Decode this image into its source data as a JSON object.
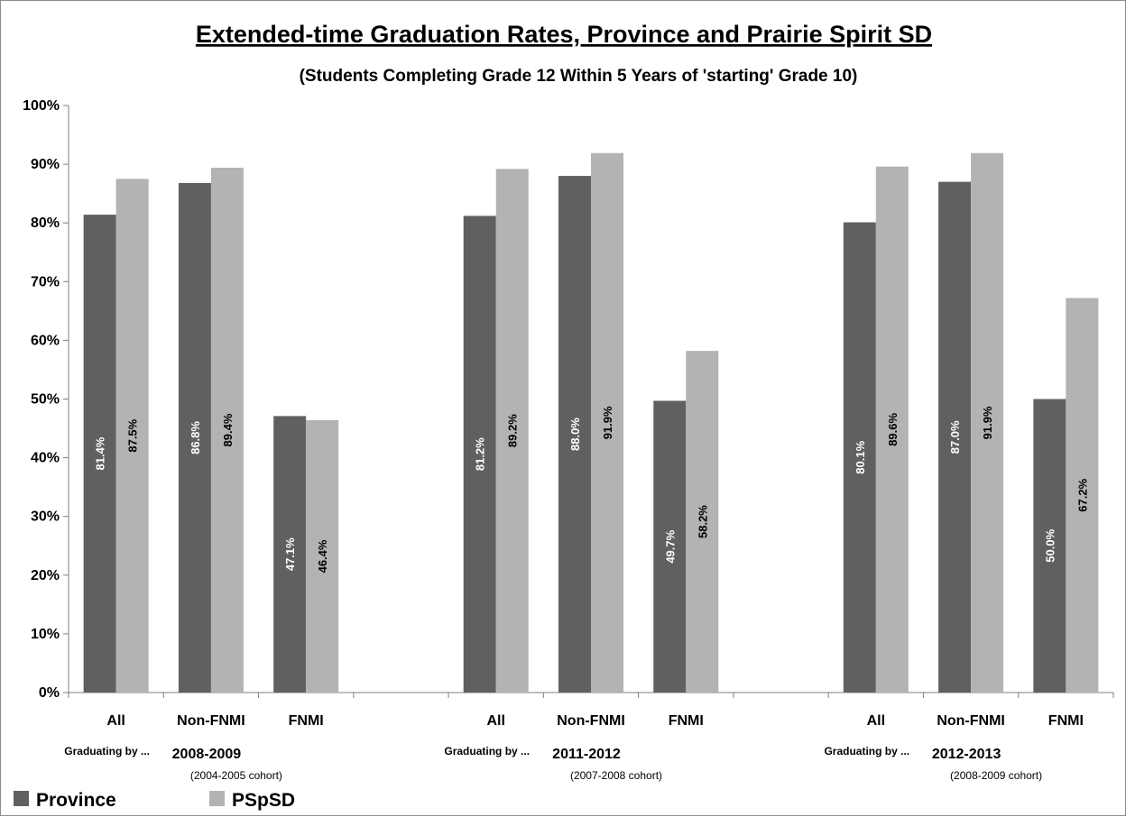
{
  "chart_data": {
    "type": "bar",
    "title": "Extended-time Graduation Rates, Province and Prairie Spirit SD",
    "subtitle": "(Students Completing Grade 12 Within 5 Years of 'starting' Grade 10)",
    "ylim": [
      0,
      100
    ],
    "y_ticks": [
      "0%",
      "10%",
      "20%",
      "30%",
      "40%",
      "50%",
      "60%",
      "70%",
      "80%",
      "90%",
      "100%"
    ],
    "grid": false,
    "legend_position": "bottom-left",
    "categories": [
      "All",
      "Non-FNMI",
      "FNMI",
      "",
      "All",
      "Non-FNMI",
      "FNMI",
      "",
      "All",
      "Non-FNMI",
      "FNMI"
    ],
    "groups": [
      {
        "graduating_label": "Graduating by ...",
        "year": "2008-2009",
        "cohort": "(2004-2005 cohort)"
      },
      {
        "graduating_label": "Graduating by ...",
        "year": "2011-2012",
        "cohort": "(2007-2008 cohort)"
      },
      {
        "graduating_label": "Graduating by ...",
        "year": "2012-2013",
        "cohort": "(2008-2009 cohort)"
      }
    ],
    "series": [
      {
        "name": "Province",
        "color": "#606060",
        "values": [
          81.4,
          86.8,
          47.1,
          null,
          81.2,
          88.0,
          49.7,
          null,
          80.1,
          87.0,
          50.0
        ],
        "labels": [
          "81.4%",
          "86.8%",
          "47.1%",
          "",
          "81.2%",
          "88.0%",
          "49.7%",
          "",
          "80.1%",
          "87.0%",
          "50.0%"
        ]
      },
      {
        "name": "PSpSD",
        "color": "#b3b3b3",
        "values": [
          87.5,
          89.4,
          46.4,
          null,
          89.2,
          91.9,
          58.2,
          null,
          89.6,
          91.9,
          67.2
        ],
        "labels": [
          "87.5%",
          "89.4%",
          "46.4%",
          "",
          "89.2%",
          "91.9%",
          "58.2%",
          "",
          "89.6%",
          "91.9%",
          "67.2%"
        ]
      }
    ]
  }
}
